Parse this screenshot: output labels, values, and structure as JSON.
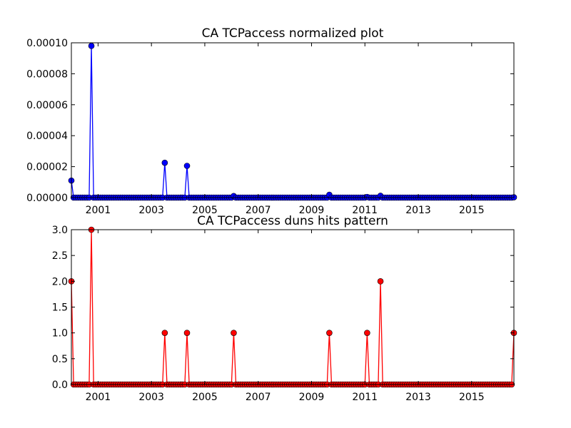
{
  "chart_data": [
    {
      "type": "line",
      "title": "CA TCPaccess normalized plot",
      "color": "#0000ff",
      "xlim": [
        "2000-01",
        "2016-08"
      ],
      "ylim": [
        0,
        0.0001
      ],
      "ytick_values": [
        0,
        2e-05,
        4e-05,
        6e-05,
        8e-05,
        0.0001
      ],
      "yticks": [
        "0.00000",
        "0.00002",
        "0.00004",
        "0.00006",
        "0.00008",
        "0.00010"
      ],
      "xticks": [
        "2001",
        "2003",
        "2005",
        "2007",
        "2009",
        "2011",
        "2013",
        "2015"
      ],
      "x_start": "2000-01",
      "x_end": "2016-08",
      "baseline": 0,
      "peaks": [
        {
          "x": "2000-01",
          "y": 1.1e-05
        },
        {
          "x": "2000-10",
          "y": 9.8e-05
        },
        {
          "x": "2003-07",
          "y": 2.25e-05
        },
        {
          "x": "2004-05",
          "y": 2.05e-05
        },
        {
          "x": "2006-02",
          "y": 1e-06
        },
        {
          "x": "2009-09",
          "y": 1.8e-06
        },
        {
          "x": "2011-02",
          "y": 4e-07
        },
        {
          "x": "2011-08",
          "y": 1.2e-06
        },
        {
          "x": "2016-08",
          "y": 2e-07
        }
      ]
    },
    {
      "type": "line",
      "title": "CA TCPaccess duns hits pattern",
      "color": "#ff0000",
      "xlim": [
        "2000-01",
        "2016-08"
      ],
      "ylim": [
        0,
        3
      ],
      "ytick_values": [
        0,
        0.5,
        1,
        1.5,
        2,
        2.5,
        3
      ],
      "yticks": [
        "0.0",
        "0.5",
        "1.0",
        "1.5",
        "2.0",
        "2.5",
        "3.0"
      ],
      "xticks": [
        "2001",
        "2003",
        "2005",
        "2007",
        "2009",
        "2011",
        "2013",
        "2015"
      ],
      "x_start": "2000-01",
      "x_end": "2016-08",
      "baseline": 0,
      "peaks": [
        {
          "x": "2000-01",
          "y": 2
        },
        {
          "x": "2000-10",
          "y": 3
        },
        {
          "x": "2003-07",
          "y": 1
        },
        {
          "x": "2004-05",
          "y": 1
        },
        {
          "x": "2006-02",
          "y": 1
        },
        {
          "x": "2009-09",
          "y": 1
        },
        {
          "x": "2011-02",
          "y": 1
        },
        {
          "x": "2011-08",
          "y": 2
        },
        {
          "x": "2016-08",
          "y": 1
        }
      ]
    }
  ]
}
